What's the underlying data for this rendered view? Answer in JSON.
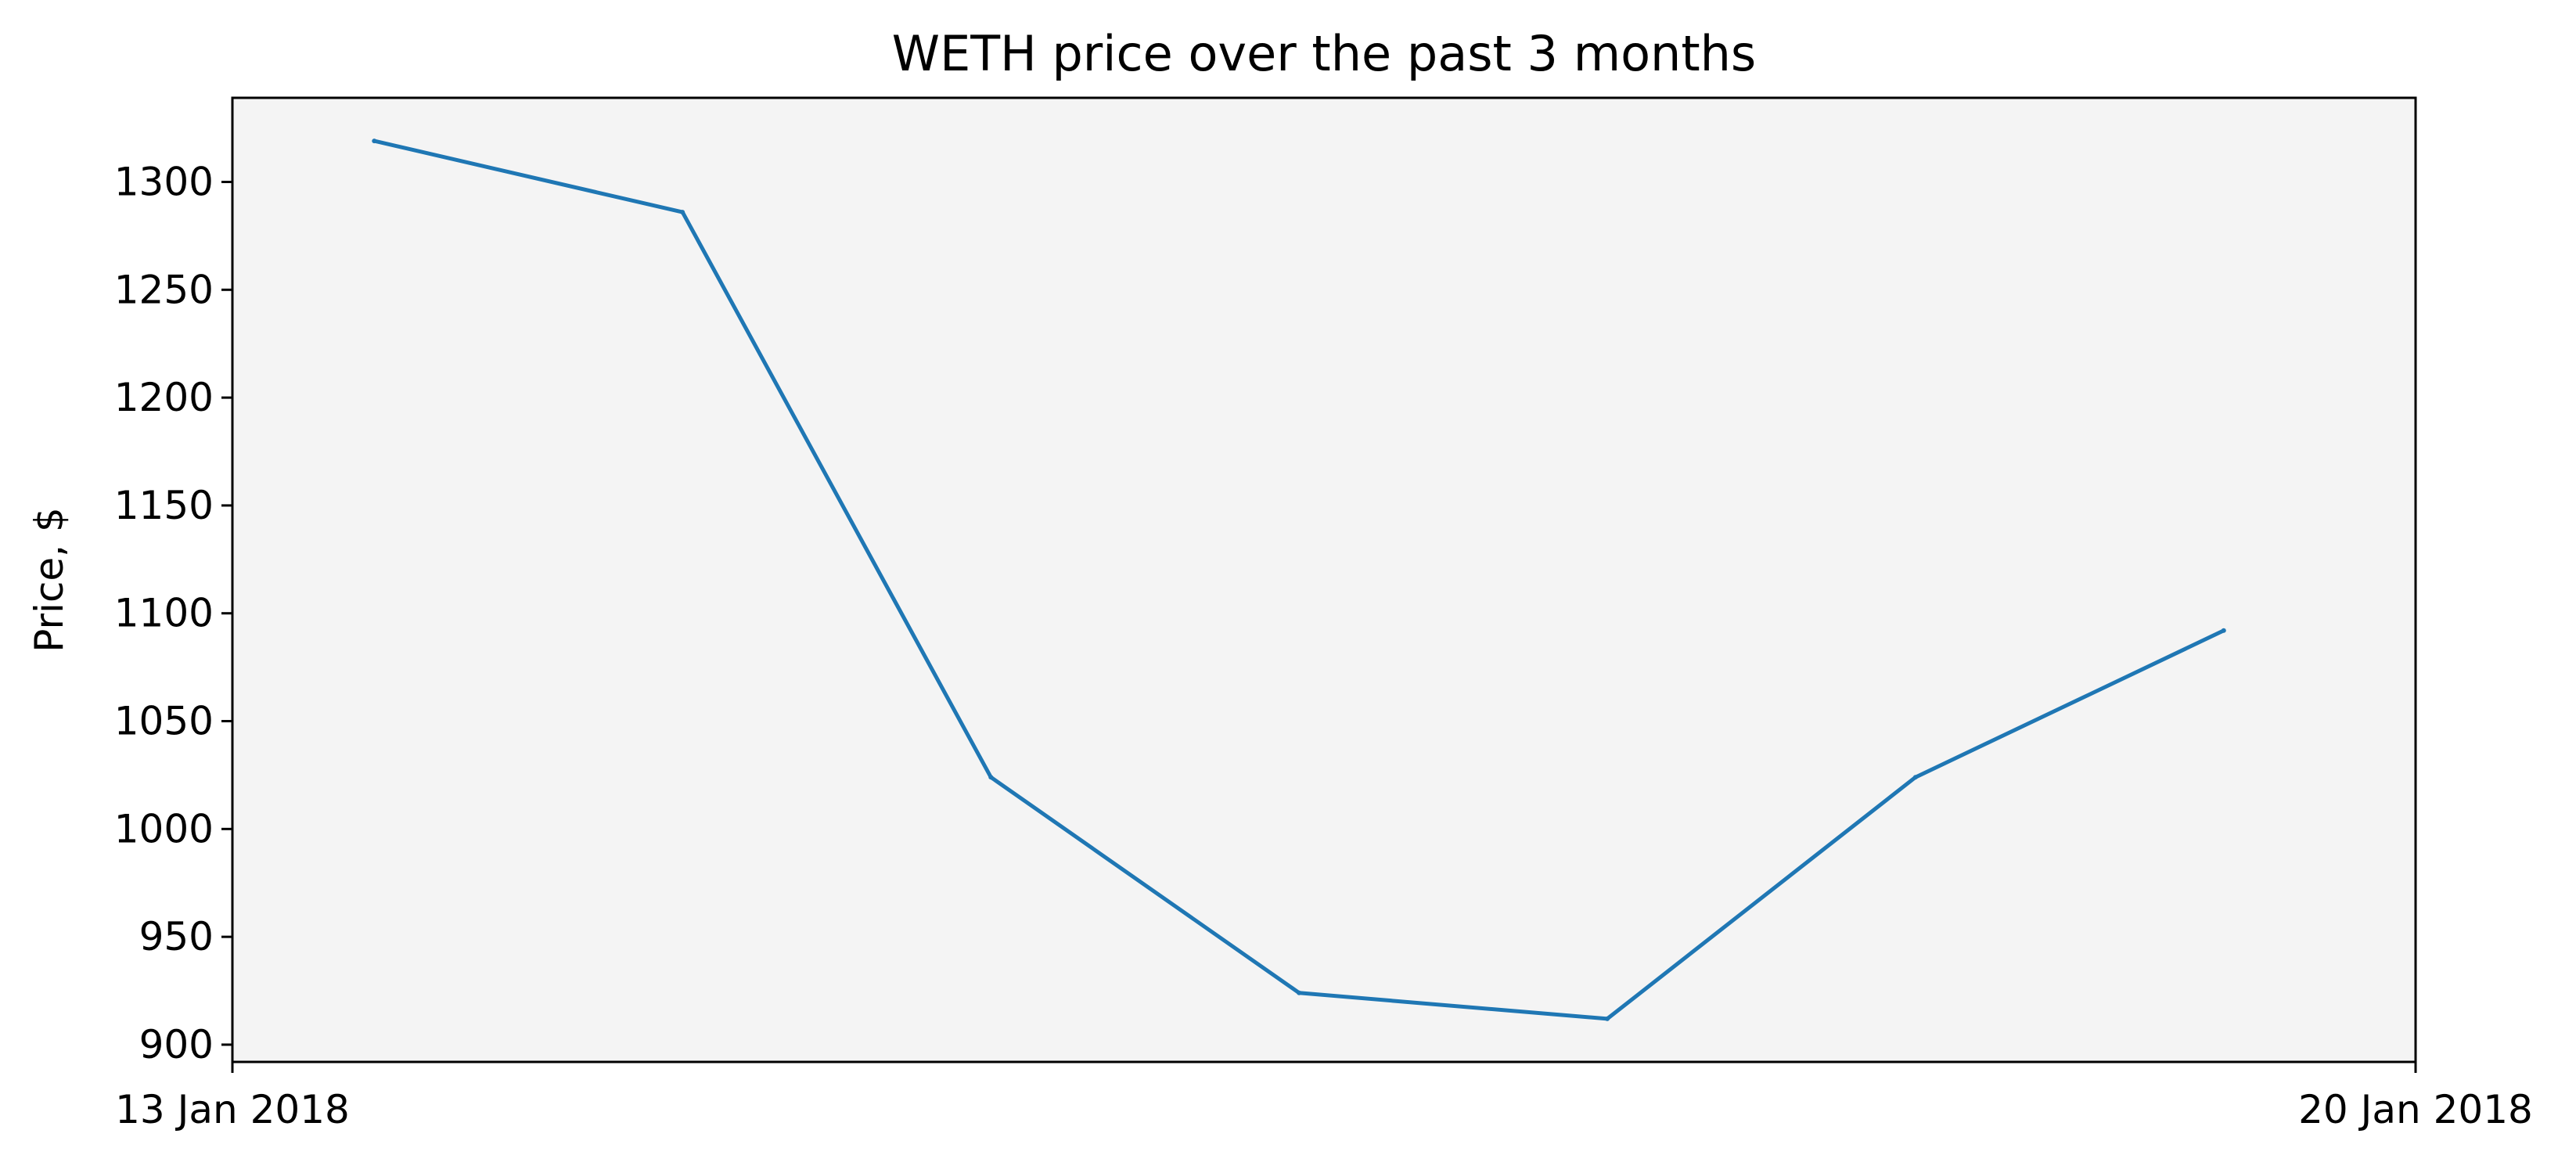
{
  "chart_data": {
    "type": "line",
    "title": "WETH price over the past 3 months",
    "xlabel": "",
    "ylabel": "Price, $",
    "x_axis": {
      "type": "date",
      "ticks": [
        {
          "value": "2018-01-13",
          "label": "13 Jan 2018"
        },
        {
          "value": "2018-01-20",
          "label": "20 Jan 2018"
        }
      ],
      "range": [
        "2018-01-13",
        "2018-01-20"
      ]
    },
    "y_axis": {
      "range": [
        892,
        1339
      ],
      "ticks": [
        900,
        950,
        1000,
        1050,
        1100,
        1150,
        1200,
        1250,
        1300
      ]
    },
    "grid": false,
    "colors": {
      "line": "#1f77b4",
      "plot_background": "#f4f4f4"
    },
    "series": [
      {
        "x": [
          "2018-01-13T10:55",
          "2018-01-14T10:38",
          "2018-01-15T10:22",
          "2018-01-16T10:05",
          "2018-01-17T09:48",
          "2018-01-18T09:31",
          "2018-01-19T09:14"
        ],
        "values": [
          1319,
          1286,
          1024,
          924,
          912,
          1024,
          1092
        ]
      }
    ]
  }
}
